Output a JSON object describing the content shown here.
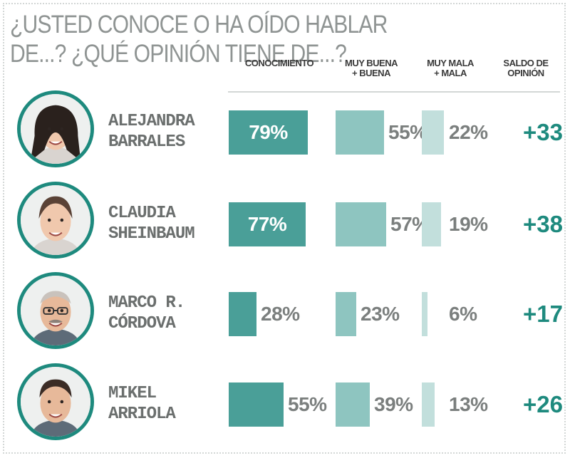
{
  "title": "¿USTED CONOCE O HA OÍDO HABLAR DE...? ¿QUÉ OPINIÓN TIENE DE...?",
  "colors": {
    "accent": "#1e8a7e",
    "conocimiento": "#4a9f98",
    "buena": "#8ec5c0",
    "mala": "#c2dfdc"
  },
  "chart_data": {
    "type": "bar",
    "columns": [
      {
        "key": "conocimiento",
        "label_lines": [
          "CONOCIMIENTO"
        ]
      },
      {
        "key": "buena",
        "label_lines": [
          "MUY BUENA",
          "+ BUENA"
        ]
      },
      {
        "key": "mala",
        "label_lines": [
          "MUY MALA",
          "+ MALA"
        ]
      },
      {
        "key": "saldo",
        "label_lines": [
          "SALDO DE",
          "OPINIÓN"
        ]
      }
    ],
    "categories": [
      "ALEJANDRA BARRALES",
      "CLAUDIA SHEINBAUM",
      "MARCO R. CÓRDOVA",
      "MIKEL ARRIOLA"
    ],
    "rows": [
      {
        "name_lines": [
          "ALEJANDRA",
          "BARRALES"
        ],
        "avatar": "portrait-woman-dark-hair",
        "conocimiento": 79,
        "buena": 55,
        "mala": 22,
        "saldo": "+33",
        "conocimiento_label": "79%",
        "buena_label": "55%",
        "mala_label": "22%"
      },
      {
        "name_lines": [
          "CLAUDIA",
          "SHEINBAUM"
        ],
        "avatar": "portrait-woman-pulled-back-hair",
        "conocimiento": 77,
        "buena": 57,
        "mala": 19,
        "saldo": "+38",
        "conocimiento_label": "77%",
        "buena_label": "57%",
        "mala_label": "19%"
      },
      {
        "name_lines": [
          "MARCO R.",
          "CÓRDOVA"
        ],
        "avatar": "portrait-man-glasses-mustache",
        "conocimiento": 28,
        "buena": 23,
        "mala": 6,
        "saldo": "+17",
        "conocimiento_label": "28%",
        "buena_label": "23%",
        "mala_label": "6%"
      },
      {
        "name_lines": [
          "MIKEL",
          "ARRIOLA"
        ],
        "avatar": "portrait-man-short-hair",
        "conocimiento": 55,
        "buena": 39,
        "mala": 13,
        "saldo": "+26",
        "conocimiento_label": "55%",
        "buena_label": "39%",
        "mala_label": "13%"
      }
    ]
  }
}
